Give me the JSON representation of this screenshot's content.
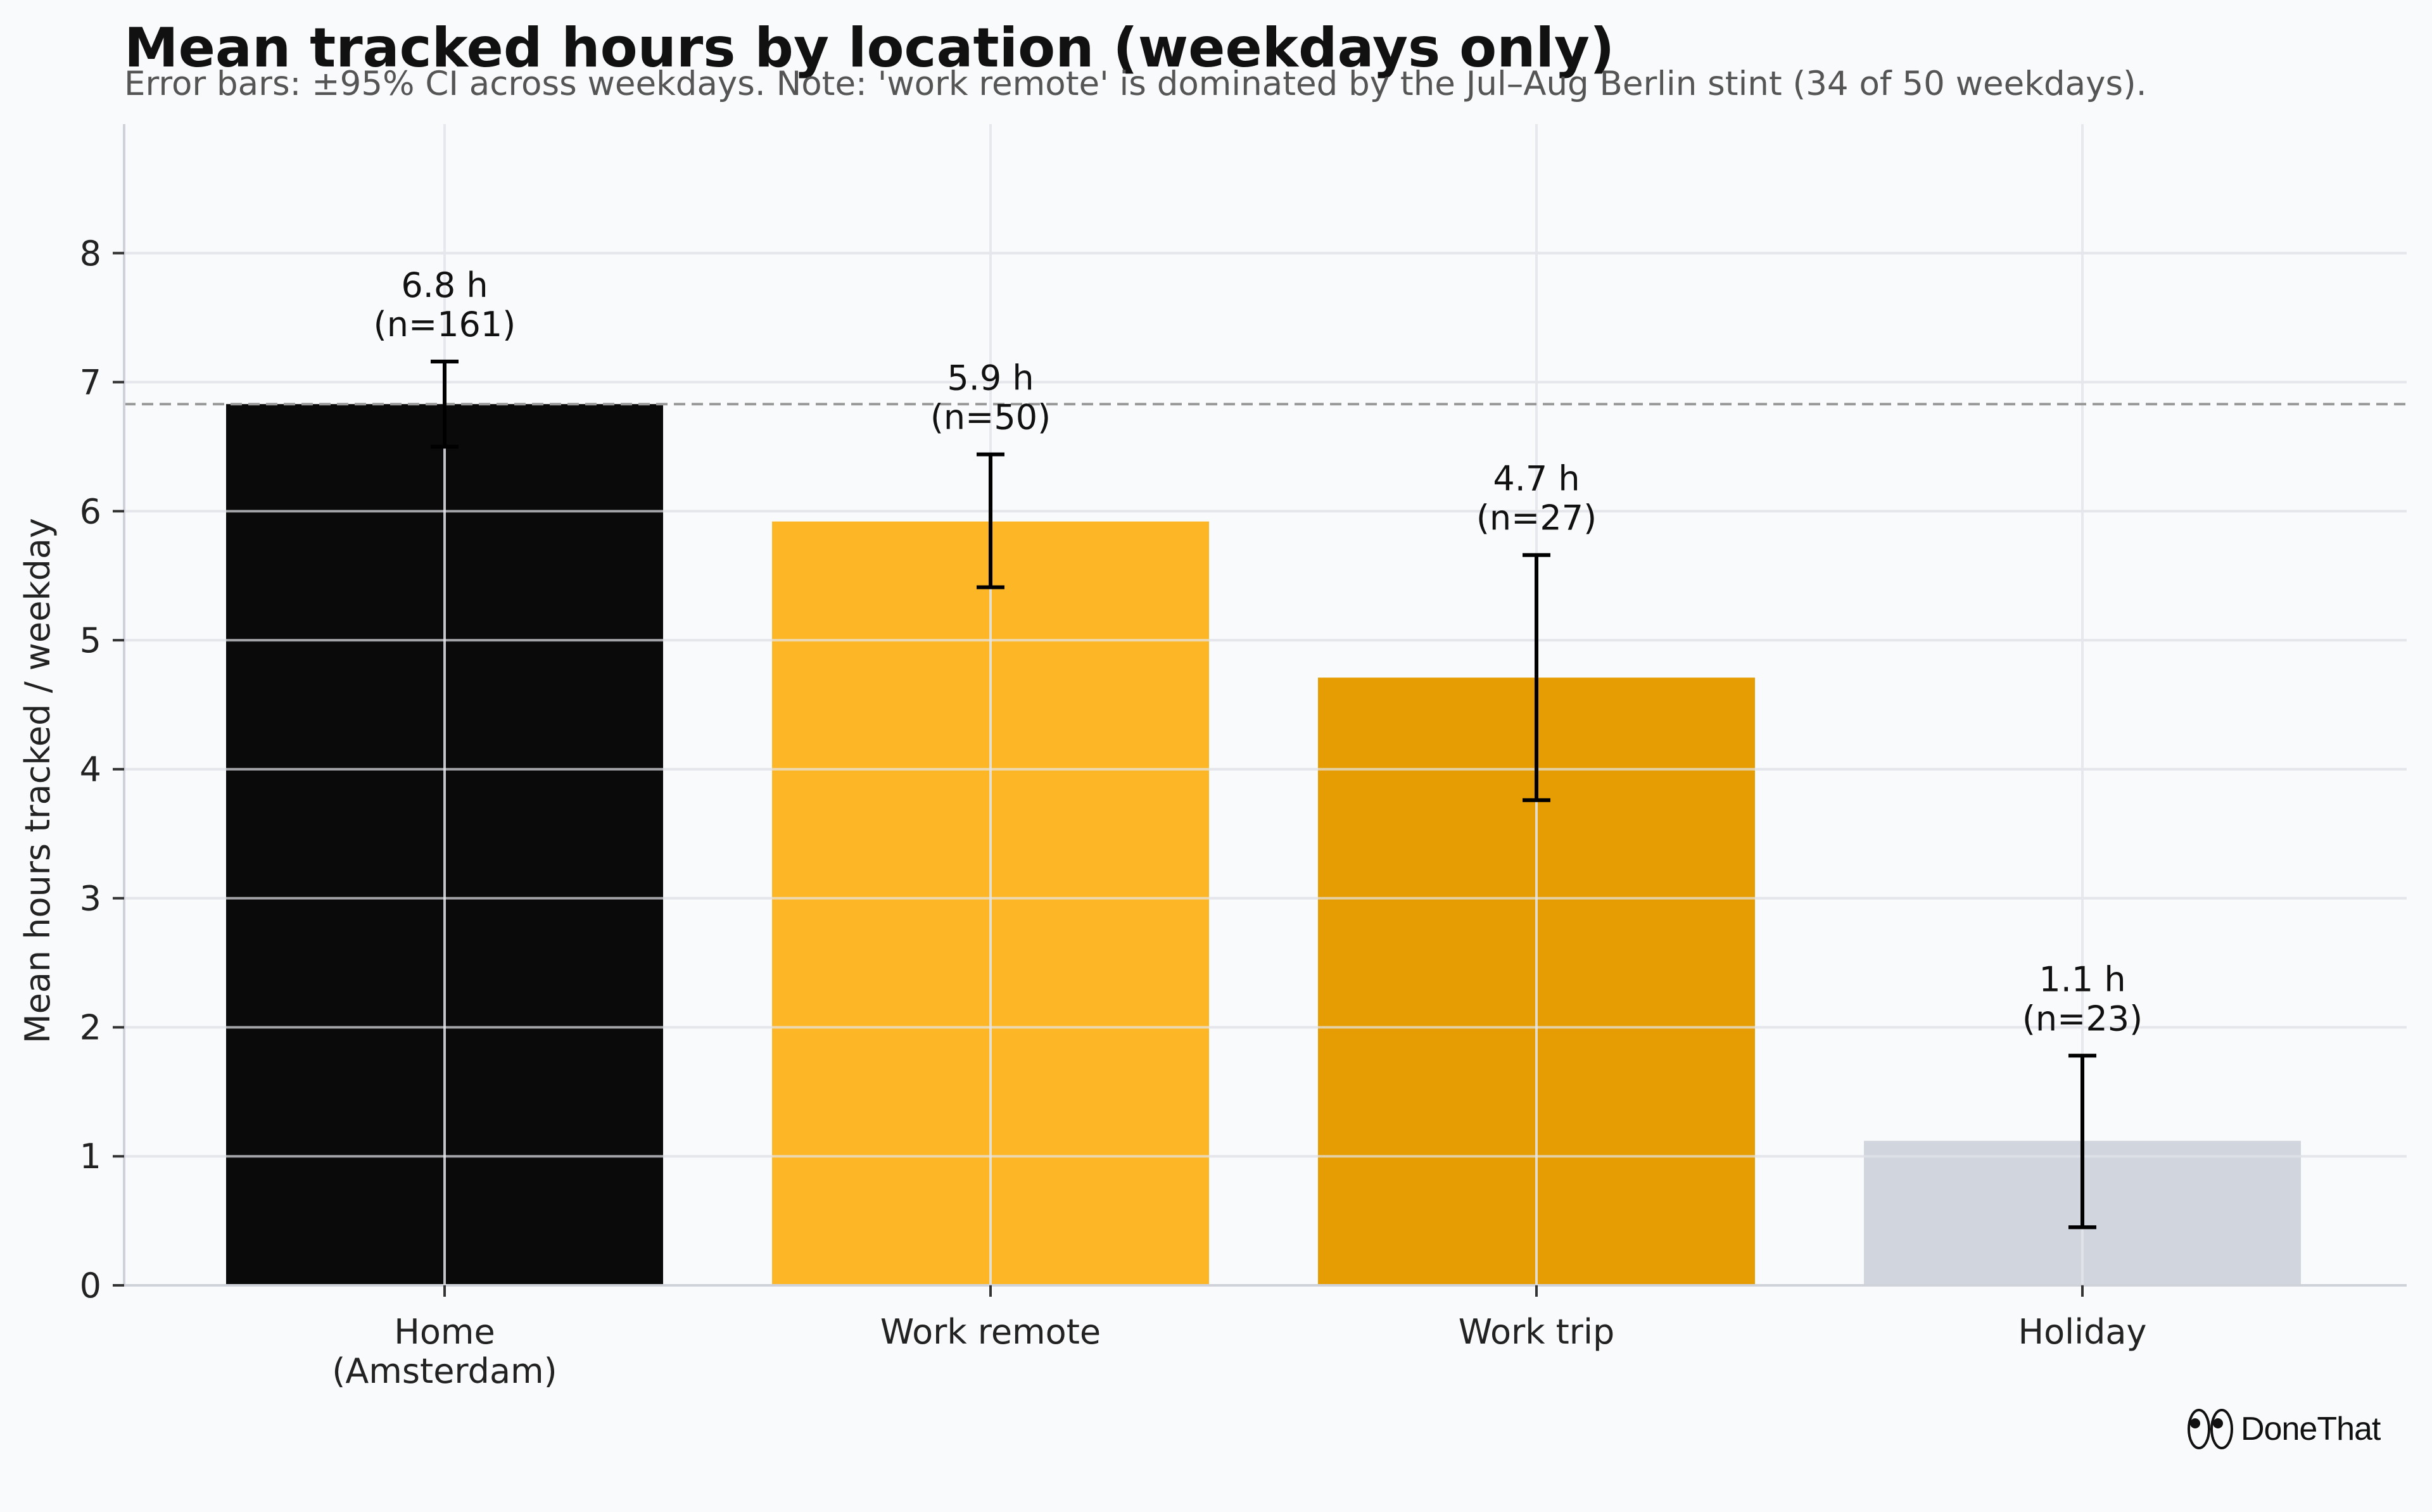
{
  "chart_data": {
    "type": "bar",
    "title": "Mean tracked hours by location (weekdays only)",
    "subtitle": "Error bars: ±95% CI across weekdays. Note: 'work remote' is dominated by the Jul–Aug Berlin stint (34 of 50 weekdays).",
    "xlabel": "",
    "ylabel": "Mean hours tracked / weekday",
    "ylim": [
      0,
      9
    ],
    "yticks": [
      0,
      1,
      2,
      3,
      4,
      5,
      6,
      7,
      8
    ],
    "grid": true,
    "reference_line": {
      "value": 6.83,
      "style": "dashed",
      "color": "#999999"
    },
    "categories": [
      {
        "label_lines": [
          "Home",
          "(Amsterdam)"
        ],
        "value": 6.83,
        "ci_low": 6.5,
        "ci_high": 7.16,
        "color": "#0a0a0a",
        "label_lines_top": [
          "6.8 h",
          "(n=161)"
        ]
      },
      {
        "label_lines": [
          "Work remote"
        ],
        "value": 5.92,
        "ci_low": 5.41,
        "ci_high": 6.44,
        "color": "#fdb726",
        "label_lines_top": [
          "5.9 h",
          "(n=50)"
        ]
      },
      {
        "label_lines": [
          "Work trip"
        ],
        "value": 4.71,
        "ci_low": 3.76,
        "ci_high": 5.66,
        "color": "#e69d03",
        "label_lines_top": [
          "4.7 h",
          "(n=27)"
        ]
      },
      {
        "label_lines": [
          "Holiday"
        ],
        "value": 1.12,
        "ci_low": 0.45,
        "ci_high": 1.78,
        "color": "#d0d5de",
        "label_lines_top": [
          "1.1 h",
          "(n=23)"
        ]
      }
    ]
  },
  "branding": {
    "logo_text": "DoneThat",
    "logo_icon": "eyes-icon"
  }
}
